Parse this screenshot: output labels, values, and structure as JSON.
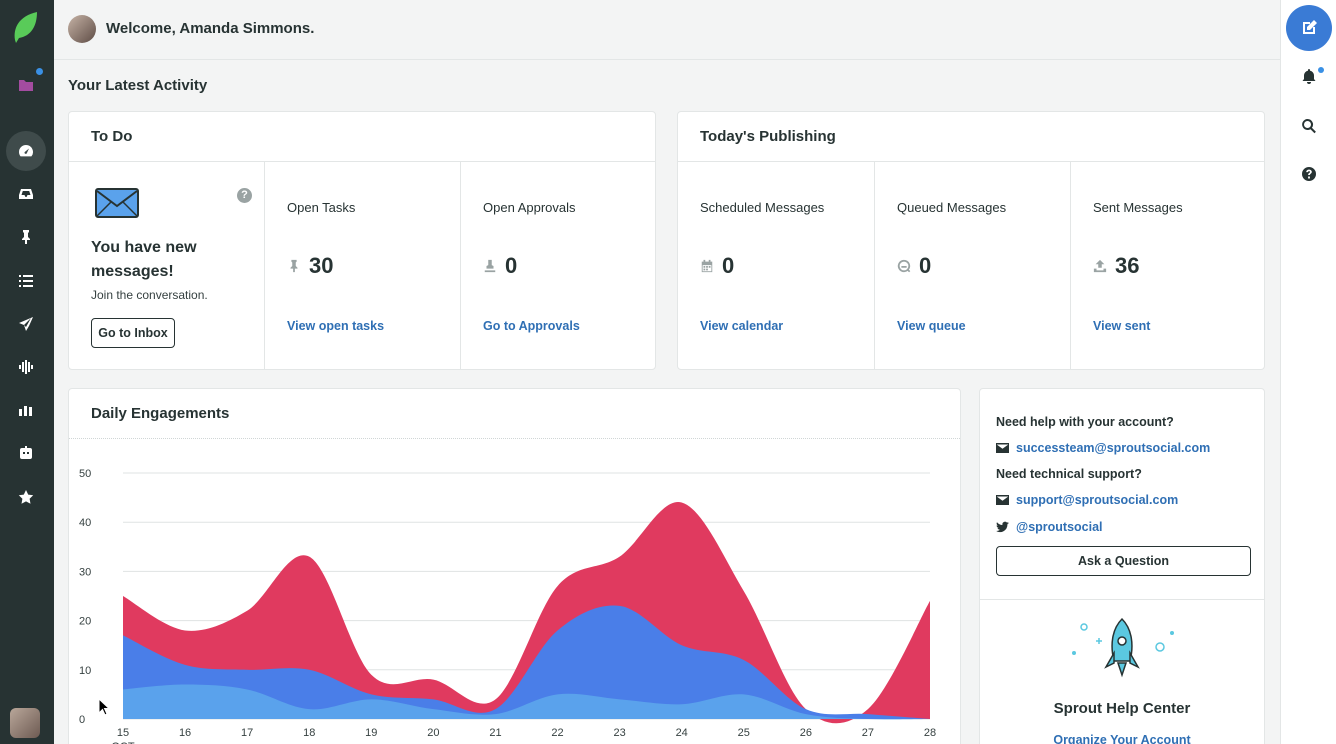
{
  "header": {
    "welcome": "Welcome, Amanda Simmons."
  },
  "section_title": "Your Latest Activity",
  "todo": {
    "title": "To Do",
    "message_title": "You have new messages!",
    "message_sub": "Join the conversation.",
    "inbox_button": "Go to Inbox",
    "open_tasks": {
      "label": "Open Tasks",
      "value": "30",
      "link": "View open tasks"
    },
    "open_approvals": {
      "label": "Open Approvals",
      "value": "0",
      "link": "Go to Approvals"
    }
  },
  "publishing": {
    "title": "Today's Publishing",
    "scheduled": {
      "label": "Scheduled Messages",
      "value": "0",
      "link": "View calendar"
    },
    "queued": {
      "label": "Queued Messages",
      "value": "0",
      "link": "View queue"
    },
    "sent": {
      "label": "Sent Messages",
      "value": "36",
      "link": "View sent"
    }
  },
  "help": {
    "account_label": "Need help with your account?",
    "account_email": "successteam@sproutsocial.com",
    "tech_label": "Need technical support?",
    "tech_email": "support@sproutsocial.com",
    "twitter": "@sproutsocial",
    "ask_button": "Ask a Question",
    "center_title": "Sprout Help Center",
    "center_link": "Organize Your Account"
  },
  "icons": {
    "nav": [
      "sprout-logo-icon",
      "folder-icon",
      "dashboard-icon",
      "inbox-icon",
      "pin-icon",
      "list-icon",
      "paper-plane-icon",
      "listening-icon",
      "reports-icon",
      "bot-icon",
      "star-icon"
    ],
    "rail": [
      "compose-icon",
      "bell-icon",
      "search-icon",
      "help-icon"
    ]
  },
  "colors": {
    "accent": "#3a7bd5",
    "brand": "#59cb59",
    "series_red": "#e03a5f",
    "series_blue": "#4a7ee8",
    "series_light": "#5aa2ec"
  },
  "chart_data": {
    "type": "area",
    "title": "Daily Engagements",
    "x": [
      "15",
      "16",
      "17",
      "18",
      "19",
      "20",
      "21",
      "22",
      "23",
      "24",
      "25",
      "26",
      "27",
      "28"
    ],
    "x_sub_label": "OCT",
    "ylim": [
      0,
      50
    ],
    "yticks": [
      0,
      10,
      20,
      30,
      40,
      50
    ],
    "grid": true,
    "stacked": true,
    "series": [
      {
        "values": [
          6,
          7,
          6,
          2,
          4,
          2,
          1,
          5,
          4,
          3,
          5,
          1,
          0,
          0
        ]
      },
      {
        "values": [
          11,
          4,
          4,
          8,
          1,
          2,
          1,
          13,
          19,
          12,
          7,
          1,
          1,
          0
        ]
      },
      {
        "values": [
          8,
          7,
          12,
          23,
          4,
          4,
          2,
          9,
          10,
          29,
          14,
          0,
          1,
          24
        ]
      }
    ]
  }
}
